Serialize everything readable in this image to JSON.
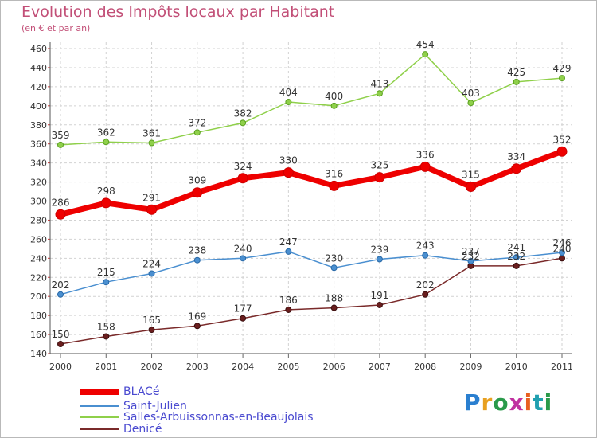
{
  "title": "Evolution des Impôts locaux par Habitant",
  "subtitle": "(en € et par an)",
  "logo": "Proxiti",
  "chart_data": {
    "type": "line",
    "x": [
      "2000",
      "2001",
      "2002",
      "2003",
      "2004",
      "2005",
      "2006",
      "2007",
      "2008",
      "2009",
      "2010",
      "2011"
    ],
    "ylim": [
      140,
      460
    ],
    "yticks": [
      140,
      160,
      180,
      200,
      220,
      240,
      260,
      280,
      300,
      320,
      340,
      360,
      380,
      400,
      420,
      440,
      460
    ],
    "grid": true,
    "legend_placement": "bottom-left",
    "series": [
      {
        "name": "BLACé",
        "color": "#ee0000",
        "values": [
          286,
          298,
          291,
          309,
          324,
          330,
          316,
          325,
          336,
          315,
          334,
          352
        ]
      },
      {
        "name": "Saint-Julien",
        "color": "#4a8fd0",
        "values": [
          202,
          215,
          224,
          238,
          240,
          247,
          230,
          239,
          243,
          237,
          241,
          246
        ]
      },
      {
        "name": "Salles-Arbuissonnas-en-Beaujolais",
        "color": "#8fd04a",
        "values": [
          359,
          362,
          361,
          372,
          382,
          404,
          400,
          413,
          454,
          403,
          425,
          429
        ]
      },
      {
        "name": "Denicé",
        "color": "#7a2a2a",
        "values": [
          150,
          158,
          165,
          169,
          177,
          186,
          188,
          191,
          202,
          232,
          232,
          240
        ]
      }
    ]
  }
}
